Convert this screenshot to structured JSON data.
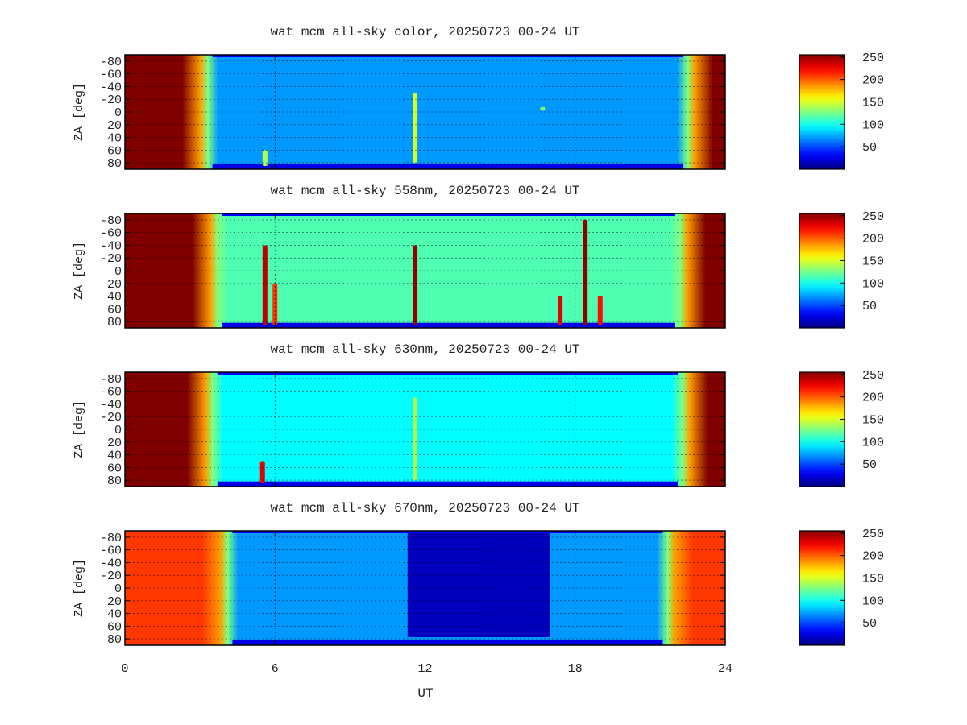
{
  "x_axis": {
    "label": "UT",
    "ticks": [
      "0",
      "6",
      "12",
      "18",
      "24"
    ],
    "range": [
      0,
      24
    ]
  },
  "y_axis": {
    "label": "ZA [deg]",
    "ticks": [
      "-80",
      "-60",
      "-40",
      "-20",
      "0",
      "20",
      "40",
      "60",
      "80"
    ],
    "range": [
      -90,
      90
    ],
    "inverted": true
  },
  "colorbar": {
    "ticks": [
      "50",
      "100",
      "150",
      "200",
      "250"
    ],
    "range": [
      0,
      255
    ],
    "colormap": "jet",
    "colors": [
      "#00008f",
      "#0000ff",
      "#00ffff",
      "#ffff00",
      "#ff0000",
      "#800000"
    ]
  },
  "chart_data": [
    {
      "type": "heatmap",
      "title": "wat mcm all-sky color, 20250723 00-24 UT",
      "xlabel": "UT",
      "ylabel": "ZA [deg]",
      "xlim": [
        0,
        24
      ],
      "ylim": [
        -90,
        90
      ],
      "zlim": [
        0,
        255
      ],
      "twilight_dusk_end_ut": 3.5,
      "twilight_dawn_start_ut": 22.3,
      "night_mean": 70,
      "blank_interval_ut": null,
      "features": [
        {
          "ut": 5.6,
          "za_from": 60,
          "za_to": 85,
          "value": 140
        },
        {
          "ut": 11.6,
          "za_from": -30,
          "za_to": 80,
          "value": 150
        },
        {
          "ut": 16.7,
          "za_from": -8,
          "za_to": -2,
          "value": 130
        }
      ]
    },
    {
      "type": "heatmap",
      "title": "wat mcm all-sky 558nm, 20250723 00-24 UT",
      "xlabel": "UT",
      "ylabel": "ZA [deg]",
      "xlim": [
        0,
        24
      ],
      "ylim": [
        -90,
        90
      ],
      "zlim": [
        0,
        255
      ],
      "twilight_dusk_end_ut": 3.9,
      "twilight_dawn_start_ut": 22.0,
      "night_mean": 115,
      "blank_interval_ut": null,
      "features": [
        {
          "ut": 5.6,
          "za_from": -40,
          "za_to": 85,
          "value": 240
        },
        {
          "ut": 6.0,
          "za_from": 20,
          "za_to": 85,
          "value": 210
        },
        {
          "ut": 11.6,
          "za_from": -40,
          "za_to": 85,
          "value": 250
        },
        {
          "ut": 17.4,
          "za_from": 40,
          "za_to": 85,
          "value": 230
        },
        {
          "ut": 18.4,
          "za_from": -80,
          "za_to": 85,
          "value": 250
        },
        {
          "ut": 19.0,
          "za_from": 40,
          "za_to": 85,
          "value": 220
        }
      ]
    },
    {
      "type": "heatmap",
      "title": "wat mcm all-sky 630nm, 20250723 00-24 UT",
      "xlabel": "UT",
      "ylabel": "ZA [deg]",
      "xlim": [
        0,
        24
      ],
      "ylim": [
        -90,
        90
      ],
      "zlim": [
        0,
        255
      ],
      "twilight_dusk_end_ut": 3.7,
      "twilight_dawn_start_ut": 22.1,
      "night_mean": 95,
      "blank_interval_ut": null,
      "features": [
        {
          "ut": 5.5,
          "za_from": 50,
          "za_to": 85,
          "value": 230
        },
        {
          "ut": 11.6,
          "za_from": -50,
          "za_to": 80,
          "value": 140
        }
      ]
    },
    {
      "type": "heatmap",
      "title": "wat mcm all-sky 670nm, 20250723 00-24 UT",
      "xlabel": "UT",
      "ylabel": "ZA [deg]",
      "xlim": [
        0,
        24
      ],
      "ylim": [
        -90,
        90
      ],
      "zlim": [
        0,
        255
      ],
      "twilight_dusk_end_ut": 4.3,
      "twilight_dawn_start_ut": 21.5,
      "night_mean": 70,
      "blank_interval_ut": [
        11.3,
        17.0
      ],
      "features": []
    }
  ]
}
